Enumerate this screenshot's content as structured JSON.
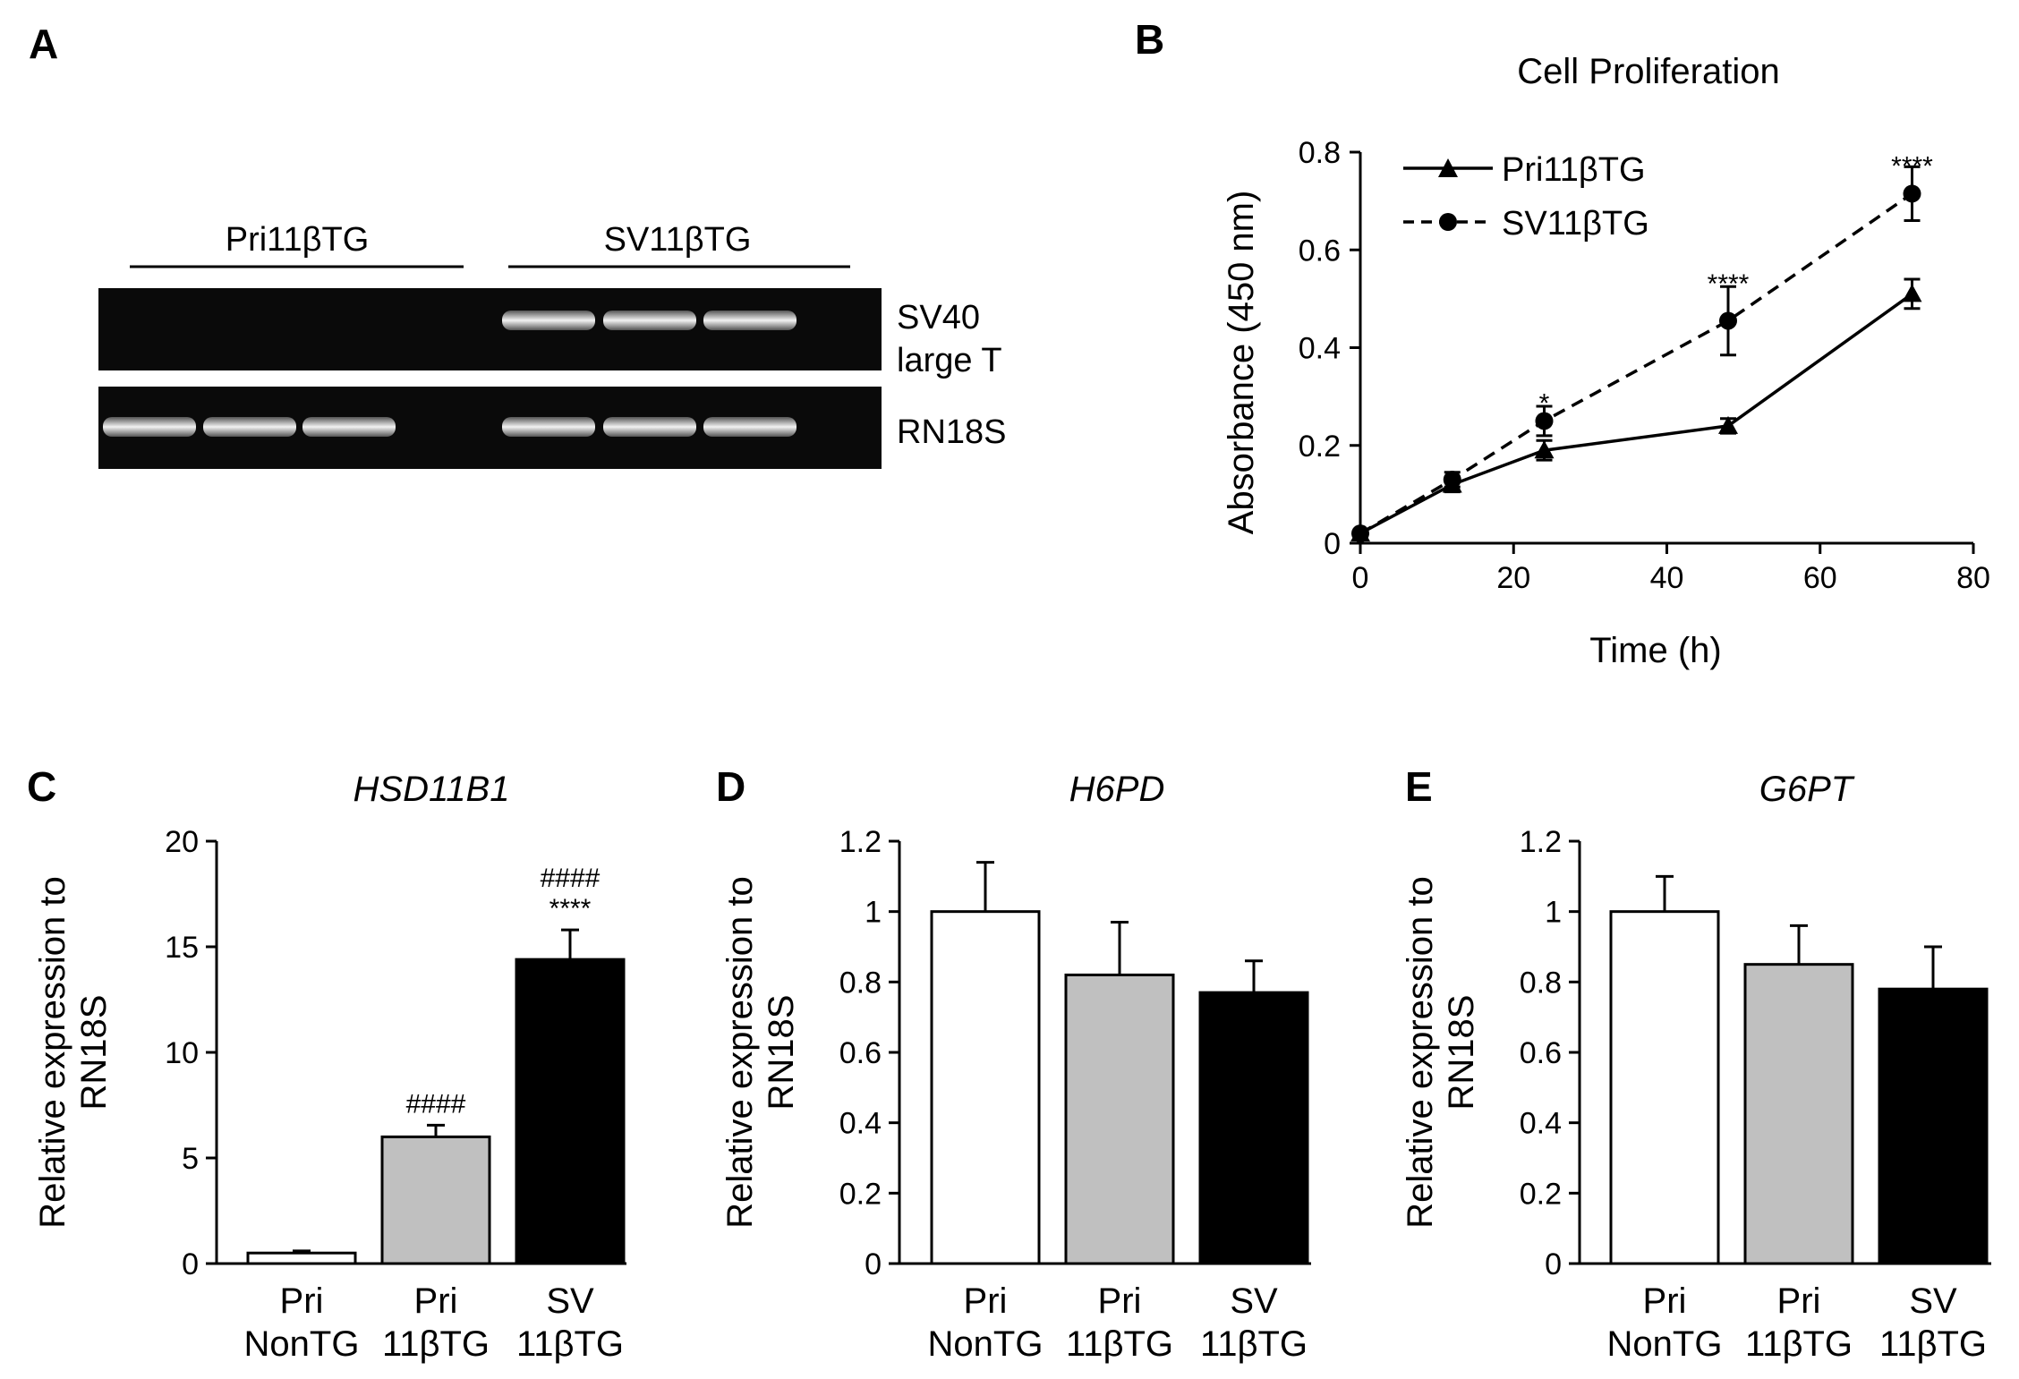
{
  "panel_letters": [
    "A",
    "B",
    "C",
    "D",
    "E"
  ],
  "gel": {
    "groups": [
      "Pri11βTG",
      "SV11βTG"
    ],
    "rows": [
      {
        "label_lines": [
          "SV40",
          "large T"
        ],
        "bands": [
          false,
          false,
          false,
          true,
          true,
          true
        ]
      },
      {
        "label_lines": [
          "RN18S"
        ],
        "bands": [
          true,
          true,
          true,
          true,
          true,
          true
        ]
      }
    ]
  },
  "chart_data": [
    {
      "panel": "B",
      "type": "line",
      "title": "Cell Proliferation",
      "xlabel": "Time (h)",
      "ylabel": "Absorbance (450 nm)",
      "xlim": [
        0,
        80
      ],
      "ylim": [
        0,
        0.8
      ],
      "xticks": [
        0,
        20,
        40,
        60,
        80
      ],
      "xtick_labels": [
        "0",
        "20",
        "40",
        "60",
        "80"
      ],
      "yticks": [
        0,
        0.2,
        0.4,
        0.6,
        0.8
      ],
      "ytick_labels": [
        "0",
        "0.2",
        "0.4",
        "0.6",
        "0.8"
      ],
      "legend_position": "top-left",
      "series": [
        {
          "name": "Pri11βTG",
          "marker": "triangle",
          "line": "solid",
          "x": [
            0,
            12,
            24,
            48,
            72
          ],
          "y": [
            0.02,
            0.12,
            0.19,
            0.24,
            0.51
          ],
          "err": [
            0.005,
            0.015,
            0.02,
            0.015,
            0.03
          ]
        },
        {
          "name": "SV11βTG",
          "marker": "circle",
          "line": "dashed",
          "x": [
            0,
            12,
            24,
            48,
            72
          ],
          "y": [
            0.02,
            0.13,
            0.25,
            0.455,
            0.715
          ],
          "err": [
            0.005,
            0.015,
            0.03,
            0.07,
            0.055
          ]
        }
      ],
      "annotations": [
        {
          "x": 24,
          "y": 0.29,
          "text": "*"
        },
        {
          "x": 48,
          "y": 0.535,
          "text": "****"
        },
        {
          "x": 72,
          "y": 0.775,
          "text": "****"
        }
      ]
    },
    {
      "panel": "C",
      "type": "bar",
      "title": "HSD11B1",
      "ylabel_lines": [
        "Relative expression to",
        "RN18S"
      ],
      "ylim": [
        0,
        20
      ],
      "yticks": [
        0,
        5,
        10,
        15,
        20
      ],
      "ytick_labels": [
        "0",
        "5",
        "10",
        "15",
        "20"
      ],
      "categories": [
        [
          "Pri",
          "NonTG"
        ],
        [
          "Pri",
          "11βTG"
        ],
        [
          "SV",
          "11βTG"
        ]
      ],
      "values": [
        0.5,
        6.0,
        14.4
      ],
      "errors": [
        0.1,
        0.55,
        1.4
      ],
      "colors": [
        "#ffffff",
        "#c0c0c0",
        "#000000"
      ],
      "annotations": [
        [],
        [
          "####"
        ],
        [
          "####",
          "****"
        ]
      ]
    },
    {
      "panel": "D",
      "type": "bar",
      "title": "H6PD",
      "ylabel_lines": [
        "Relative expression to",
        "RN18S"
      ],
      "ylim": [
        0,
        1.2
      ],
      "yticks": [
        0,
        0.2,
        0.4,
        0.6,
        0.8,
        1,
        1.2
      ],
      "ytick_labels": [
        "0",
        "0.2",
        "0.4",
        "0.6",
        "0.8",
        "1",
        "1.2"
      ],
      "categories": [
        [
          "Pri",
          "NonTG"
        ],
        [
          "Pri",
          "11βTG"
        ],
        [
          "SV",
          "11βTG"
        ]
      ],
      "values": [
        1.0,
        0.82,
        0.77
      ],
      "errors": [
        0.14,
        0.15,
        0.09
      ],
      "colors": [
        "#ffffff",
        "#c0c0c0",
        "#000000"
      ],
      "annotations": [
        [],
        [],
        []
      ]
    },
    {
      "panel": "E",
      "type": "bar",
      "title": "G6PT",
      "ylabel_lines": [
        "Relative expression to",
        "RN18S"
      ],
      "ylim": [
        0,
        1.2
      ],
      "yticks": [
        0,
        0.2,
        0.4,
        0.6,
        0.8,
        1,
        1.2
      ],
      "ytick_labels": [
        "0",
        "0.2",
        "0.4",
        "0.6",
        "0.8",
        "1",
        "1.2"
      ],
      "categories": [
        [
          "Pri",
          "NonTG"
        ],
        [
          "Pri",
          "11βTG"
        ],
        [
          "SV",
          "11βTG"
        ]
      ],
      "values": [
        1.0,
        0.85,
        0.78
      ],
      "errors": [
        0.1,
        0.11,
        0.12
      ],
      "colors": [
        "#ffffff",
        "#c0c0c0",
        "#000000"
      ],
      "annotations": [
        [],
        [],
        []
      ]
    }
  ]
}
